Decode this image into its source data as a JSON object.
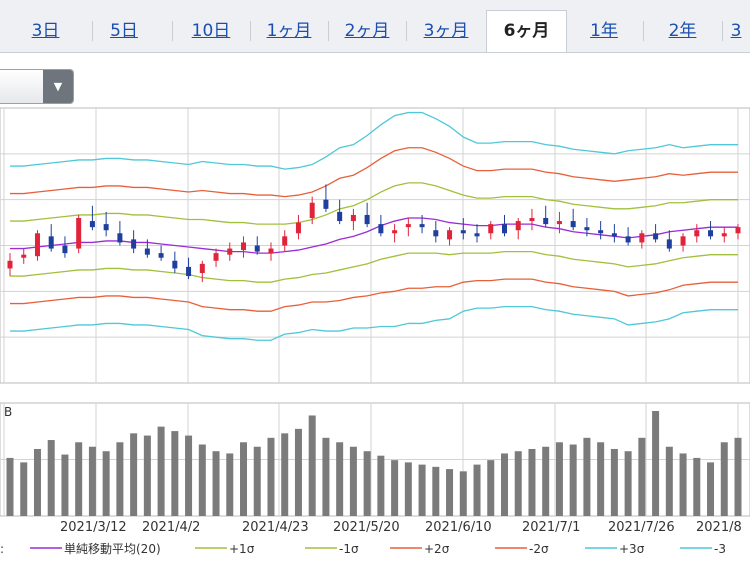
{
  "tabs": [
    {
      "label": "3日",
      "active": false
    },
    {
      "label": "5日",
      "active": false
    },
    {
      "label": "10日",
      "active": false
    },
    {
      "label": "1ヶ月",
      "active": false
    },
    {
      "label": "2ヶ月",
      "active": false
    },
    {
      "label": "3ヶ月",
      "active": false
    },
    {
      "label": "6ヶ月",
      "active": true
    },
    {
      "label": "1年",
      "active": false
    },
    {
      "label": "2年",
      "active": false
    },
    {
      "label": "3",
      "active": false
    }
  ],
  "dropdown": {
    "value": "",
    "icon": "triangle-down-icon"
  },
  "chart_data": {
    "type": "candlestick",
    "x_labels": [
      "2021/3/12",
      "2021/4/2",
      "2021/4/23",
      "2021/5/20",
      "2021/6/10",
      "2021/7/1",
      "2021/7/26",
      "2021/8"
    ],
    "volume_panel_label": "B",
    "colors": {
      "up": "#e0243a",
      "down": "#1f3f9e",
      "ma": "#9b2bd6",
      "sigma1": "#a2c03c",
      "sigma2": "#e8603a",
      "sigma3": "#4fc8d8",
      "volume": "#7b7b7b",
      "grid": "#d3d3d3"
    },
    "legend": [
      {
        "label": "単純移動平均(20)",
        "color": "#9b2bd6"
      },
      {
        "label": "+1σ",
        "color": "#a2c03c"
      },
      {
        "label": "-1σ",
        "color": "#a2c03c"
      },
      {
        "label": "+2σ",
        "color": "#e8603a"
      },
      {
        "label": "-2σ",
        "color": "#e8603a"
      },
      {
        "label": "+3σ",
        "color": "#4fc8d8"
      },
      {
        "label": "-3",
        "color": "#4fc8d8"
      }
    ],
    "ma": [
      58,
      58,
      59,
      60,
      61,
      62,
      62,
      63,
      63,
      62,
      62,
      61,
      60,
      59,
      58,
      57,
      56,
      56,
      55,
      55,
      56,
      57,
      59,
      61,
      64,
      66,
      69,
      73,
      76,
      78,
      78,
      77,
      75,
      74,
      73,
      73,
      74,
      74,
      74,
      72,
      71,
      69,
      68,
      67,
      66,
      65,
      66,
      67,
      69,
      70,
      71,
      72,
      72,
      72
    ],
    "sigma1": [
      8,
      8,
      8,
      8,
      8,
      8,
      8,
      8,
      8,
      8,
      8,
      8,
      8,
      8,
      8,
      8,
      9,
      9,
      9,
      8,
      8,
      8,
      9,
      9,
      10,
      10,
      10,
      11,
      11,
      11,
      11,
      10,
      9,
      9,
      8,
      8,
      8,
      8,
      8,
      8,
      8,
      8,
      8,
      9,
      9,
      9,
      9,
      9,
      9,
      9,
      9,
      9,
      9,
      9
    ],
    "sigma_width": [
      18,
      18,
      18,
      18,
      18,
      18,
      18,
      18,
      18,
      18,
      18,
      18,
      18,
      18,
      19,
      19,
      19,
      19,
      19,
      19,
      18,
      18,
      18,
      19,
      20,
      20,
      21,
      22,
      23,
      23,
      23,
      22,
      21,
      19,
      18,
      18,
      18,
      18,
      18,
      18,
      18,
      18,
      18,
      18,
      18,
      19,
      19,
      19,
      19,
      18,
      18,
      18,
      18,
      18
    ],
    "candles": [
      {
        "o": 45,
        "h": 55,
        "l": 40,
        "c": 50
      },
      {
        "o": 52,
        "h": 58,
        "l": 48,
        "c": 54
      },
      {
        "o": 53,
        "h": 70,
        "l": 50,
        "c": 68
      },
      {
        "o": 66,
        "h": 74,
        "l": 56,
        "c": 58
      },
      {
        "o": 60,
        "h": 66,
        "l": 52,
        "c": 55
      },
      {
        "o": 58,
        "h": 80,
        "l": 55,
        "c": 78
      },
      {
        "o": 76,
        "h": 86,
        "l": 70,
        "c": 72
      },
      {
        "o": 74,
        "h": 82,
        "l": 66,
        "c": 70
      },
      {
        "o": 68,
        "h": 76,
        "l": 60,
        "c": 62
      },
      {
        "o": 64,
        "h": 70,
        "l": 55,
        "c": 58
      },
      {
        "o": 58,
        "h": 64,
        "l": 52,
        "c": 54
      },
      {
        "o": 55,
        "h": 60,
        "l": 50,
        "c": 52
      },
      {
        "o": 50,
        "h": 56,
        "l": 42,
        "c": 45
      },
      {
        "o": 46,
        "h": 52,
        "l": 38,
        "c": 40
      },
      {
        "o": 42,
        "h": 50,
        "l": 36,
        "c": 48
      },
      {
        "o": 50,
        "h": 58,
        "l": 46,
        "c": 55
      },
      {
        "o": 54,
        "h": 62,
        "l": 50,
        "c": 58
      },
      {
        "o": 57,
        "h": 66,
        "l": 52,
        "c": 62
      },
      {
        "o": 60,
        "h": 66,
        "l": 54,
        "c": 56
      },
      {
        "o": 55,
        "h": 62,
        "l": 50,
        "c": 58
      },
      {
        "o": 60,
        "h": 70,
        "l": 56,
        "c": 66
      },
      {
        "o": 68,
        "h": 80,
        "l": 64,
        "c": 75
      },
      {
        "o": 78,
        "h": 92,
        "l": 74,
        "c": 88
      },
      {
        "o": 90,
        "h": 100,
        "l": 82,
        "c": 84
      },
      {
        "o": 82,
        "h": 90,
        "l": 74,
        "c": 76
      },
      {
        "o": 76,
        "h": 84,
        "l": 70,
        "c": 80
      },
      {
        "o": 80,
        "h": 88,
        "l": 72,
        "c": 74
      },
      {
        "o": 74,
        "h": 80,
        "l": 66,
        "c": 68
      },
      {
        "o": 68,
        "h": 74,
        "l": 62,
        "c": 70
      },
      {
        "o": 72,
        "h": 78,
        "l": 66,
        "c": 74
      },
      {
        "o": 74,
        "h": 80,
        "l": 68,
        "c": 72
      },
      {
        "o": 70,
        "h": 76,
        "l": 62,
        "c": 66
      },
      {
        "o": 64,
        "h": 72,
        "l": 60,
        "c": 70
      },
      {
        "o": 70,
        "h": 78,
        "l": 64,
        "c": 68
      },
      {
        "o": 68,
        "h": 74,
        "l": 62,
        "c": 66
      },
      {
        "o": 68,
        "h": 76,
        "l": 64,
        "c": 74
      },
      {
        "o": 74,
        "h": 80,
        "l": 66,
        "c": 68
      },
      {
        "o": 70,
        "h": 78,
        "l": 64,
        "c": 76
      },
      {
        "o": 76,
        "h": 84,
        "l": 70,
        "c": 78
      },
      {
        "o": 78,
        "h": 86,
        "l": 72,
        "c": 74
      },
      {
        "o": 74,
        "h": 82,
        "l": 68,
        "c": 76
      },
      {
        "o": 76,
        "h": 84,
        "l": 70,
        "c": 72
      },
      {
        "o": 72,
        "h": 78,
        "l": 66,
        "c": 70
      },
      {
        "o": 70,
        "h": 76,
        "l": 64,
        "c": 68
      },
      {
        "o": 68,
        "h": 74,
        "l": 62,
        "c": 66
      },
      {
        "o": 66,
        "h": 72,
        "l": 60,
        "c": 62
      },
      {
        "o": 62,
        "h": 70,
        "l": 58,
        "c": 68
      },
      {
        "o": 68,
        "h": 74,
        "l": 62,
        "c": 64
      },
      {
        "o": 64,
        "h": 70,
        "l": 56,
        "c": 58
      },
      {
        "o": 60,
        "h": 68,
        "l": 56,
        "c": 66
      },
      {
        "o": 66,
        "h": 74,
        "l": 62,
        "c": 70
      },
      {
        "o": 70,
        "h": 76,
        "l": 64,
        "c": 66
      },
      {
        "o": 66,
        "h": 72,
        "l": 62,
        "c": 68
      },
      {
        "o": 68,
        "h": 74,
        "l": 64,
        "c": 72
      }
    ],
    "volume": [
      52,
      48,
      60,
      68,
      55,
      66,
      62,
      58,
      66,
      74,
      72,
      80,
      76,
      72,
      64,
      58,
      56,
      66,
      62,
      70,
      74,
      78,
      90,
      70,
      66,
      62,
      58,
      54,
      50,
      48,
      46,
      44,
      42,
      40,
      46,
      50,
      56,
      58,
      60,
      62,
      66,
      64,
      70,
      66,
      60,
      58,
      70,
      94,
      62,
      56,
      52,
      48,
      66,
      70
    ]
  }
}
